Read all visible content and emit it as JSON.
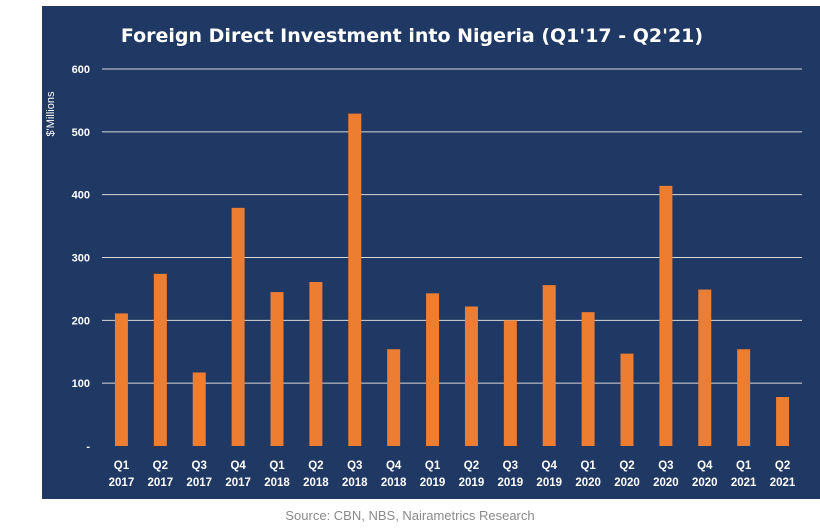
{
  "source": "Source: CBN, NBS, Nairametrics Research",
  "chart_data": {
    "type": "bar",
    "title": "Foreign Direct Investment into Nigeria (Q1'17 - Q2'21)",
    "xlabel": "",
    "ylabel": "$'Millions",
    "ylim": [
      0,
      600
    ],
    "yticks": [
      0,
      100,
      200,
      300,
      400,
      500,
      600
    ],
    "ytick_labels": [
      "-",
      "100",
      "200",
      "300",
      "400",
      "500",
      "600"
    ],
    "grid": true,
    "bar_color": "#ed7d31",
    "background_color": "#1f3864",
    "categories": [
      {
        "q": "Q1",
        "y": "2017"
      },
      {
        "q": "Q2",
        "y": "2017"
      },
      {
        "q": "Q3",
        "y": "2017"
      },
      {
        "q": "Q4",
        "y": "2017"
      },
      {
        "q": "Q1",
        "y": "2018"
      },
      {
        "q": "Q2",
        "y": "2018"
      },
      {
        "q": "Q3",
        "y": "2018"
      },
      {
        "q": "Q4",
        "y": "2018"
      },
      {
        "q": "Q1",
        "y": "2019"
      },
      {
        "q": "Q2",
        "y": "2019"
      },
      {
        "q": "Q3",
        "y": "2019"
      },
      {
        "q": "Q4",
        "y": "2019"
      },
      {
        "q": "Q1",
        "y": "2020"
      },
      {
        "q": "Q2",
        "y": "2020"
      },
      {
        "q": "Q3",
        "y": "2020"
      },
      {
        "q": "Q4",
        "y": "2020"
      },
      {
        "q": "Q1",
        "y": "2021"
      },
      {
        "q": "Q2",
        "y": "2021"
      }
    ],
    "values": [
      211,
      274,
      117,
      379,
      245,
      261,
      529,
      154,
      243,
      222,
      200,
      256,
      213,
      147,
      414,
      249,
      154,
      78
    ]
  }
}
